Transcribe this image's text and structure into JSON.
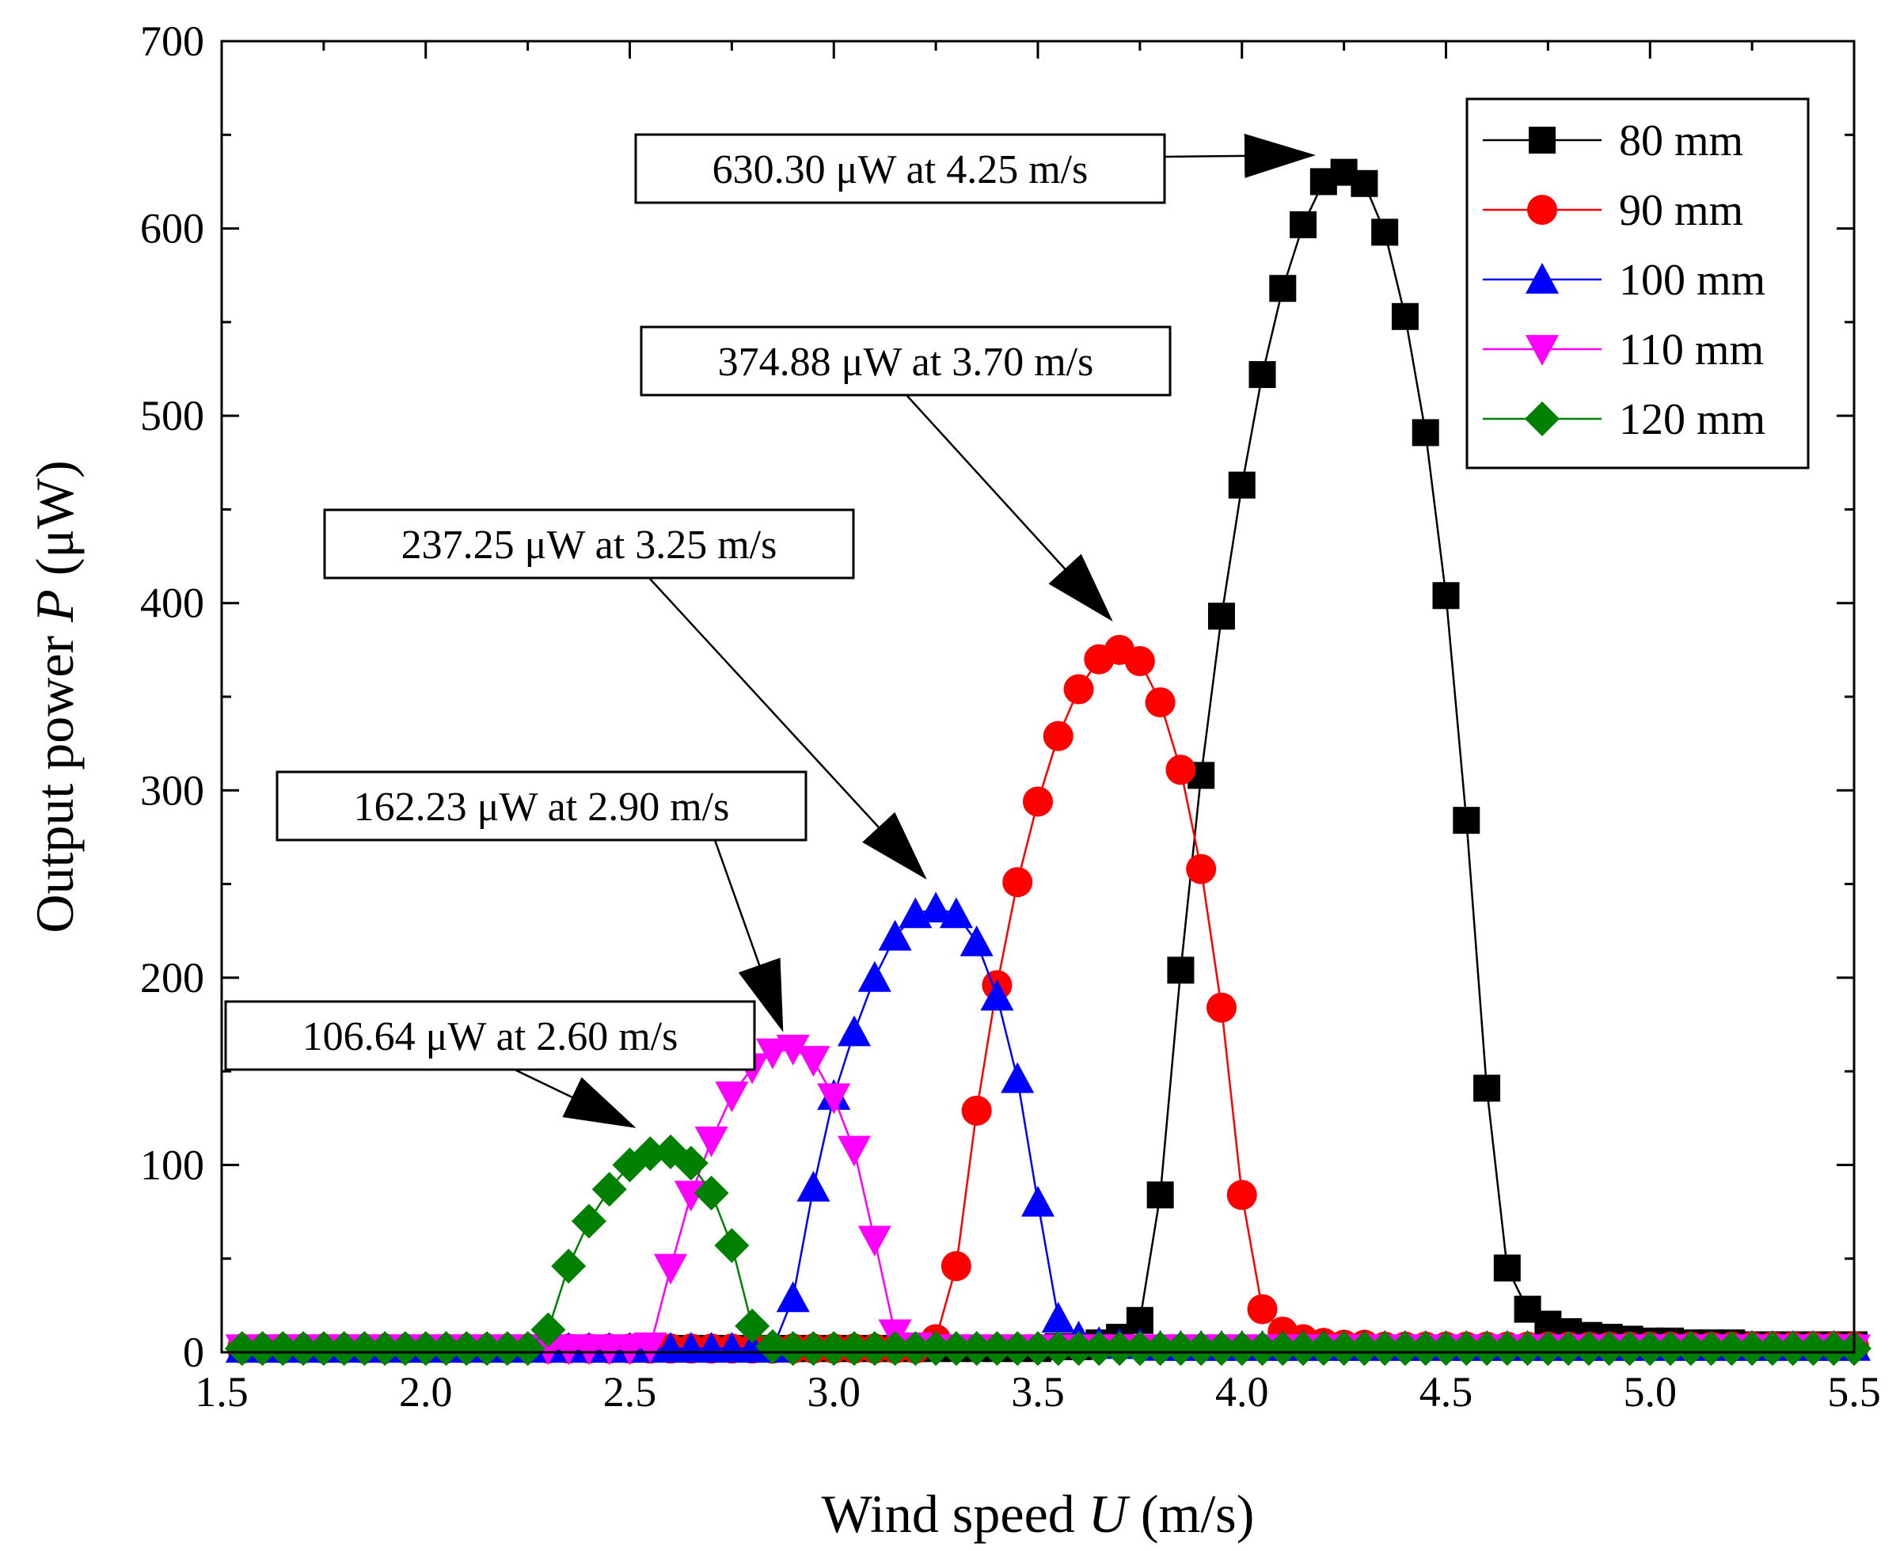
{
  "chart_data": {
    "type": "line",
    "xlabel": {
      "prefix": "Wind speed ",
      "symbol": "U",
      "suffix": " (m/s)"
    },
    "ylabel": {
      "prefix": "Output power ",
      "symbol": "P",
      "suffix": " (μW)"
    },
    "xlim": [
      1.5,
      5.5
    ],
    "ylim": [
      0,
      700
    ],
    "xticks": [
      "1.5",
      "2.0",
      "2.5",
      "3.0",
      "3.5",
      "4.0",
      "4.5",
      "5.0",
      "5.5"
    ],
    "yticks": [
      "0",
      "100",
      "200",
      "300",
      "400",
      "500",
      "600",
      "700"
    ],
    "legend_position": "top-right",
    "series": [
      {
        "name": "80 mm",
        "color": "#000000",
        "marker": "square",
        "x": [
          1.55,
          1.6,
          1.65,
          1.7,
          1.75,
          1.8,
          1.85,
          1.9,
          1.95,
          2.0,
          2.05,
          2.1,
          2.15,
          2.2,
          2.25,
          2.3,
          2.35,
          2.4,
          2.45,
          2.5,
          2.55,
          2.6,
          2.65,
          2.7,
          2.75,
          2.8,
          2.85,
          2.9,
          2.95,
          3.0,
          3.05,
          3.1,
          3.15,
          3.2,
          3.25,
          3.3,
          3.35,
          3.4,
          3.45,
          3.5,
          3.55,
          3.6,
          3.65,
          3.7,
          3.75,
          3.8,
          3.85,
          3.9,
          3.95,
          4.0,
          4.05,
          4.1,
          4.15,
          4.2,
          4.25,
          4.3,
          4.35,
          4.4,
          4.45,
          4.5,
          4.55,
          4.6,
          4.65,
          4.7,
          4.75,
          4.8,
          4.85,
          4.9,
          4.95,
          5.0,
          5.05,
          5.1,
          5.15,
          5.2,
          5.25,
          5.3,
          5.35,
          5.4,
          5.45,
          5.5
        ],
        "y": [
          2,
          2,
          2,
          2,
          2,
          2,
          2,
          2,
          2,
          2,
          2,
          2,
          2,
          2,
          2,
          2,
          2,
          2,
          2,
          2,
          2,
          2,
          2,
          2,
          2,
          2,
          2,
          2,
          2,
          2,
          2,
          2,
          2,
          2,
          2,
          2,
          2,
          2,
          2,
          2,
          3,
          3,
          5,
          8,
          17,
          84,
          204,
          308,
          393,
          463,
          522,
          568,
          602,
          625,
          630,
          624,
          598,
          553,
          491,
          404,
          284,
          141,
          45,
          23,
          15,
          11,
          9,
          8,
          7,
          6,
          6,
          5,
          5,
          5,
          4,
          4,
          4,
          4,
          4,
          4
        ]
      },
      {
        "name": "90 mm",
        "color": "#ff0000",
        "marker": "circle",
        "x": [
          1.55,
          1.6,
          1.65,
          1.7,
          1.75,
          1.8,
          1.85,
          1.9,
          1.95,
          2.0,
          2.05,
          2.1,
          2.15,
          2.2,
          2.25,
          2.3,
          2.35,
          2.4,
          2.45,
          2.5,
          2.55,
          2.6,
          2.65,
          2.7,
          2.75,
          2.8,
          2.85,
          2.9,
          2.95,
          3.0,
          3.05,
          3.1,
          3.15,
          3.2,
          3.25,
          3.3,
          3.35,
          3.4,
          3.45,
          3.5,
          3.55,
          3.6,
          3.65,
          3.7,
          3.75,
          3.8,
          3.85,
          3.9,
          3.95,
          4.0,
          4.05,
          4.1,
          4.15,
          4.2,
          4.25,
          4.3,
          4.35,
          4.4,
          4.45,
          4.5,
          4.55,
          4.6,
          4.65,
          4.7,
          4.75,
          4.8,
          4.85,
          4.9,
          4.95,
          5.0,
          5.05,
          5.1,
          5.15,
          5.2,
          5.25,
          5.3,
          5.35,
          5.4,
          5.45,
          5.5
        ],
        "y": [
          2,
          2,
          2,
          2,
          2,
          2,
          2,
          2,
          2,
          2,
          2,
          2,
          2,
          2,
          2,
          2,
          2,
          2,
          2,
          2,
          2,
          2,
          2,
          2,
          2,
          2,
          2,
          2,
          2,
          2,
          2,
          2,
          2,
          2,
          7,
          46,
          129,
          196,
          251,
          294,
          329,
          354,
          370,
          375,
          369,
          347,
          311,
          258,
          184,
          84,
          23,
          11,
          7,
          5,
          4,
          4,
          3,
          3,
          3,
          3,
          3,
          3,
          3,
          3,
          3,
          3,
          3,
          3,
          3,
          3,
          3,
          3,
          3,
          3,
          3,
          3,
          3,
          3,
          3,
          3
        ]
      },
      {
        "name": "100 mm",
        "color": "#0000ff",
        "marker": "triangle-up",
        "x": [
          1.55,
          1.6,
          1.65,
          1.7,
          1.75,
          1.8,
          1.85,
          1.9,
          1.95,
          2.0,
          2.05,
          2.1,
          2.15,
          2.2,
          2.25,
          2.3,
          2.35,
          2.4,
          2.45,
          2.5,
          2.55,
          2.6,
          2.65,
          2.7,
          2.75,
          2.8,
          2.85,
          2.9,
          2.95,
          3.0,
          3.05,
          3.1,
          3.15,
          3.2,
          3.25,
          3.3,
          3.35,
          3.4,
          3.45,
          3.5,
          3.55,
          3.6,
          3.65,
          3.7,
          3.75,
          3.8,
          3.85,
          3.9,
          3.95,
          4.0,
          4.05,
          4.1,
          4.15,
          4.2,
          4.25,
          4.3,
          4.35,
          4.4,
          4.45,
          4.5,
          4.55,
          4.6,
          4.65,
          4.7,
          4.75,
          4.8,
          4.85,
          4.9,
          4.95,
          5.0,
          5.05,
          5.1,
          5.15,
          5.2,
          5.25,
          5.3,
          5.35,
          5.4,
          5.45,
          5.5
        ],
        "y": [
          2,
          2,
          2,
          2,
          2,
          2,
          2,
          2,
          2,
          2,
          2,
          2,
          2,
          2,
          2,
          2,
          2,
          2,
          2,
          2,
          2,
          2,
          2,
          2,
          2,
          2,
          2,
          29,
          88,
          137,
          171,
          200,
          222,
          234,
          237,
          234,
          219,
          190,
          146,
          80,
          18,
          8,
          5,
          4,
          4,
          3,
          3,
          3,
          3,
          3,
          3,
          3,
          3,
          3,
          3,
          3,
          3,
          3,
          3,
          3,
          3,
          3,
          3,
          3,
          3,
          3,
          3,
          3,
          3,
          3,
          3,
          3,
          3,
          3,
          3,
          3,
          3,
          3,
          3,
          3
        ]
      },
      {
        "name": "110 mm",
        "color": "#ff00ff",
        "marker": "triangle-down",
        "x": [
          1.55,
          1.6,
          1.65,
          1.7,
          1.75,
          1.8,
          1.85,
          1.9,
          1.95,
          2.0,
          2.05,
          2.1,
          2.15,
          2.2,
          2.25,
          2.3,
          2.35,
          2.4,
          2.45,
          2.5,
          2.55,
          2.6,
          2.65,
          2.7,
          2.75,
          2.8,
          2.85,
          2.9,
          2.95,
          3.0,
          3.05,
          3.1,
          3.15,
          3.2,
          3.25,
          3.3,
          3.35,
          3.4,
          3.45,
          3.5,
          3.55,
          3.6,
          3.65,
          3.7,
          3.75,
          3.8,
          3.85,
          3.9,
          3.95,
          4.0,
          4.05,
          4.1,
          4.15,
          4.2,
          4.25,
          4.3,
          4.35,
          4.4,
          4.45,
          4.5,
          4.55,
          4.6,
          4.65,
          4.7,
          4.75,
          4.8,
          4.85,
          4.9,
          4.95,
          5.0,
          5.05,
          5.1,
          5.15,
          5.2,
          5.25,
          5.3,
          5.35,
          5.4,
          5.45,
          5.5
        ],
        "y": [
          2,
          2,
          2,
          2,
          2,
          2,
          2,
          2,
          2,
          2,
          2,
          2,
          2,
          2,
          2,
          2,
          2,
          2,
          2,
          2,
          3,
          45,
          84,
          113,
          137,
          152,
          160,
          162,
          156,
          136,
          108,
          60,
          10,
          3,
          2,
          2,
          2,
          2,
          2,
          2,
          2,
          2,
          2,
          2,
          2,
          2,
          2,
          2,
          2,
          2,
          2,
          2,
          2,
          2,
          2,
          2,
          2,
          2,
          2,
          2,
          2,
          2,
          2,
          2,
          2,
          2,
          2,
          2,
          2,
          2,
          2,
          2,
          2,
          2,
          2,
          2,
          2,
          2,
          2,
          2
        ]
      },
      {
        "name": "120 mm",
        "color": "#008000",
        "marker": "diamond",
        "x": [
          1.55,
          1.6,
          1.65,
          1.7,
          1.75,
          1.8,
          1.85,
          1.9,
          1.95,
          2.0,
          2.05,
          2.1,
          2.15,
          2.2,
          2.25,
          2.3,
          2.35,
          2.4,
          2.45,
          2.5,
          2.55,
          2.6,
          2.65,
          2.7,
          2.75,
          2.8,
          2.85,
          2.9,
          2.95,
          3.0,
          3.05,
          3.1,
          3.15,
          3.2,
          3.25,
          3.3,
          3.35,
          3.4,
          3.45,
          3.5,
          3.55,
          3.6,
          3.65,
          3.7,
          3.75,
          3.8,
          3.85,
          3.9,
          3.95,
          4.0,
          4.05,
          4.1,
          4.15,
          4.2,
          4.25,
          4.3,
          4.35,
          4.4,
          4.45,
          4.5,
          4.55,
          4.6,
          4.65,
          4.7,
          4.75,
          4.8,
          4.85,
          4.9,
          4.95,
          5.0,
          5.05,
          5.1,
          5.15,
          5.2,
          5.25,
          5.3,
          5.35,
          5.4,
          5.45,
          5.5
        ],
        "y": [
          2,
          2,
          2,
          2,
          2,
          2,
          2,
          2,
          2,
          2,
          2,
          2,
          2,
          2,
          2,
          12,
          46,
          70,
          87,
          100,
          106,
          107,
          101,
          85,
          57,
          14,
          3,
          2,
          2,
          2,
          2,
          2,
          2,
          2,
          2,
          2,
          2,
          2,
          2,
          2,
          2,
          2,
          2,
          2,
          2,
          2,
          2,
          2,
          2,
          2,
          2,
          2,
          2,
          2,
          2,
          2,
          2,
          2,
          2,
          2,
          2,
          2,
          2,
          2,
          2,
          2,
          2,
          2,
          2,
          2,
          2,
          2,
          2,
          2,
          2,
          2,
          2,
          2,
          2,
          2
        ]
      }
    ],
    "annotations": [
      {
        "text": "630.30 μW at 4.25 m/s",
        "target": [
          4.25,
          630.3
        ]
      },
      {
        "text": "374.88 μW at 3.70 m/s",
        "target": [
          3.7,
          374.88
        ]
      },
      {
        "text": "237.25 μW at 3.25 m/s",
        "target": [
          3.25,
          237.25
        ]
      },
      {
        "text": "162.23 μW at 2.90 m/s",
        "target": [
          2.9,
          162.23
        ]
      },
      {
        "text": "106.64 μW at 2.60 m/s",
        "target": [
          2.6,
          106.64
        ]
      }
    ]
  }
}
